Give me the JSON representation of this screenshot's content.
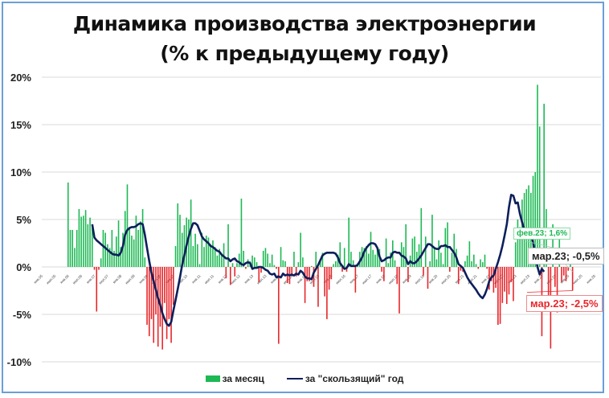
{
  "title": {
    "line1": "Динамика производства электроэнергии",
    "line2": "(% к предыдущему году)"
  },
  "legend": {
    "monthly": "за месяц",
    "rolling": "за \"скользящий\" год"
  },
  "annotations": {
    "feb23": "фев.23; 1,6%",
    "mar23_rolling": "мар.23; -0,5%",
    "mar23_monthly": "мар.23; -2,5%"
  },
  "colors": {
    "positive_bar": "#1db954",
    "negative_bar": "#e8262b",
    "rolling_line": "#0d1f5c",
    "frame_border": "#6a9fd8",
    "grid": "#d9d9d9"
  },
  "chart_data": {
    "type": "bar+line",
    "title": "Динамика производства электроэнергии (% к предыдущему году)",
    "xlabel": "",
    "ylabel": "",
    "ylim": [
      -10,
      20
    ],
    "yticks": [
      "20%",
      "15%",
      "10%",
      "5%",
      "0%",
      "-5%",
      "-10%"
    ],
    "grid": true,
    "legend_position": "bottom",
    "x_tick_labels": [
      "янв.05",
      "июл.05",
      "янв.06",
      "июл.06",
      "янв.07",
      "июл.07",
      "янв.08",
      "июл.08",
      "янв.09",
      "июл.09",
      "янв.10",
      "июл.10",
      "янв.11",
      "июл.11",
      "янв.12",
      "июл.12",
      "янв.13",
      "июл.13",
      "янв.14",
      "июл.14",
      "янв.15",
      "июл.15",
      "янв.16",
      "июл.16",
      "янв.17",
      "июл.17",
      "янв.18",
      "июл.18",
      "янв.19",
      "июл.19",
      "янв.20",
      "июл.20",
      "янв.21",
      "июл.21",
      "янв.22",
      "июл.22",
      "янв.23",
      "июл.23",
      "янв.24",
      "июл.24",
      "янв.25",
      "июл.25",
      "янв.26"
    ],
    "x_start": "янв.06",
    "x_end": "мар.23",
    "series": [
      {
        "name": "за месяц",
        "type": "bar",
        "values": [
          8.9,
          3.9,
          3.9,
          2.0,
          3.9,
          6.1,
          5.3,
          5.4,
          6.0,
          4.5,
          5.2,
          4.2,
          -0.3,
          -4.7,
          -0.3,
          0.9,
          3.9,
          3.6,
          2.4,
          2.0,
          3.9,
          1.7,
          3.2,
          4.9,
          2.1,
          3.6,
          5.9,
          8.7,
          4.2,
          3.3,
          2.9,
          5.4,
          3.9,
          4.8,
          6.1,
          1.0,
          -6.1,
          -7.3,
          -5.5,
          -8.0,
          -5.0,
          -8.4,
          -6.3,
          -8.7,
          -3.8,
          -7.6,
          -5.5,
          -8.0,
          -4.0,
          2.2,
          6.7,
          5.5,
          3.6,
          4.4,
          5.2,
          5.0,
          7.1,
          2.2,
          3.5,
          2.4,
          0.3,
          3.6,
          2.1,
          3.3,
          3.1,
          2.4,
          2.8,
          2.1,
          1.2,
          1.9,
          1.4,
          2.5,
          -1.2,
          4.5,
          -1.9,
          0.4,
          -1.0,
          0.4,
          1.4,
          7.2,
          1.7,
          -0.2,
          0.8,
          0.6,
          1.2,
          1.0,
          0.5,
          -1.6,
          -0.6,
          1.7,
          2.0,
          1.4,
          0.4,
          1.3,
          0.2,
          -0.2,
          -8.1,
          2.1,
          0.7,
          0.6,
          -1.7,
          -1.8,
          -0.9,
          1.6,
          -1.0,
          0.5,
          3.6,
          1.0,
          -3.8,
          -1.5,
          -1.5,
          0.1,
          -2.1,
          1.6,
          -4.2,
          0.6,
          1.5,
          -3.1,
          -5.5,
          -2.4,
          -1.3,
          0.3,
          0.6,
          1.3,
          2.6,
          -0.5,
          2.0,
          -0.5,
          5.2,
          1.6,
          0.7,
          -2.7,
          0.4,
          1.6,
          2.1,
          2.0,
          2.2,
          1.4,
          3.7,
          1.8,
          1.3,
          2.1,
          1.9,
          -0.5,
          -1.5,
          3.0,
          0.4,
          1.5,
          2.8,
          0.7,
          -1.8,
          -4.9,
          2.6,
          2.1,
          4.5,
          -1.6,
          1.2,
          3.0,
          3.2,
          1.6,
          2.4,
          6.2,
          -0.9,
          3.2,
          -2.3,
          0.6,
          5.5,
          2.0,
          0.8,
          2.8,
          1.5,
          0.3,
          4.1,
          4.7,
          -0.5,
          1.5,
          3.5,
          1.9,
          -1.8,
          -0.4,
          -0.5,
          0.6,
          1.2,
          2.7,
          0.6,
          1.3,
          0.3,
          -0.2,
          0.8,
          0.5,
          1.3,
          -0.2,
          -2.4,
          -1.5,
          -2.7,
          -2.2,
          -6.1,
          -6.0,
          -3.8,
          -2.6,
          -3.9,
          -2.9,
          -1.6,
          -3.6,
          2.6,
          5.0,
          4.2,
          7.1,
          7.8,
          8.2,
          8.6,
          7.8,
          9.6,
          10.0,
          19.2,
          14.8,
          -7.3,
          17.2,
          6.1,
          -3.9,
          -8.6,
          4.5,
          -2.1,
          -4.8,
          2.9,
          -1.6,
          -0.9,
          -1.5,
          -0.4,
          1.6,
          -2.5
        ]
      },
      {
        "name": "за \"скользящий\" год",
        "type": "line",
        "start": "дек.06",
        "values": [
          4.5,
          3.1,
          2.8,
          2.6,
          2.4,
          2.2,
          2.0,
          1.8,
          1.6,
          1.4,
          1.3,
          1.3,
          1.2,
          1.5,
          2.2,
          3.4,
          3.9,
          4.1,
          4.2,
          4.2,
          4.3,
          4.5,
          4.6,
          4.5,
          3.4,
          2.0,
          0.6,
          -0.6,
          -1.5,
          -2.4,
          -3.3,
          -4.0,
          -4.9,
          -5.5,
          -6.0,
          -6.2,
          -5.8,
          -4.6,
          -3.5,
          -2.3,
          -1.1,
          0.2,
          1.2,
          2.3,
          3.2,
          4.0,
          4.6,
          4.6,
          4.4,
          3.8,
          3.2,
          2.9,
          2.7,
          2.5,
          2.2,
          2.1,
          1.9,
          1.7,
          1.6,
          1.3,
          1.1,
          0.9,
          0.9,
          0.6,
          0.8,
          0.9,
          0.6,
          0.5,
          0.3,
          0.2,
          0.4,
          0.5,
          0.4,
          -0.2,
          -0.1,
          -0.1,
          0.0,
          0.0,
          -0.1,
          -0.3,
          -0.4,
          -0.7,
          -0.8,
          -0.7,
          -1.1,
          -1.0,
          -1.1,
          -0.7,
          -0.9,
          -0.8,
          -0.9,
          -0.8,
          -0.9,
          -0.7,
          -0.8,
          -0.4,
          -0.6,
          -1.0,
          -1.2,
          -1.2,
          -1.3,
          -0.6,
          -0.2,
          0.2,
          0.7,
          1.2,
          1.4,
          1.5,
          1.5,
          1.5,
          1.5,
          1.4,
          1.0,
          0.4,
          0.1,
          -0.2,
          -0.1,
          0.3,
          0.1,
          0.1,
          0.1,
          0.2,
          0.6,
          1.0,
          1.6,
          2.0,
          2.3,
          2.5,
          2.5,
          2.4,
          2.0,
          1.1,
          0.6,
          0.7,
          0.9,
          1.0,
          1.0,
          1.5,
          1.6,
          1.5,
          1.5,
          1.2,
          1.1,
          0.9,
          0.3,
          0.6,
          0.4,
          0.4,
          0.6,
          0.9,
          1.2,
          1.6,
          2.0,
          2.4,
          2.4,
          2.2,
          2.0,
          1.9,
          1.9,
          2.2,
          2.2,
          2.3,
          2.1,
          2.1,
          1.8,
          1.5,
          1.0,
          0.3,
          0.1,
          -0.1,
          -0.6,
          -1.1,
          -1.5,
          -1.8,
          -2.1,
          -2.4,
          -2.8,
          -3.1,
          -3.3,
          -2.9,
          -2.3,
          -1.5,
          -1.1,
          -0.9,
          -0.2,
          0.5,
          1.3,
          2.2,
          3.3,
          4.5,
          6.3,
          7.6,
          7.5,
          6.7,
          6.8,
          5.6,
          4.7,
          3.9,
          3.5,
          3.7,
          3.6,
          2.6,
          1.2,
          0.0,
          -0.8,
          -0.2,
          -0.5
        ]
      }
    ],
    "annotations": [
      {
        "label": "фев.23; 1,6%",
        "series": "за месяц",
        "x": "фев.23",
        "y": 1.6
      },
      {
        "label": "мар.23; -0,5%",
        "series": "за \"скользящий\" год",
        "x": "мар.23",
        "y": -0.5
      },
      {
        "label": "мар.23; -2,5%",
        "series": "за месяц",
        "x": "мар.23",
        "y": -2.5
      }
    ]
  }
}
